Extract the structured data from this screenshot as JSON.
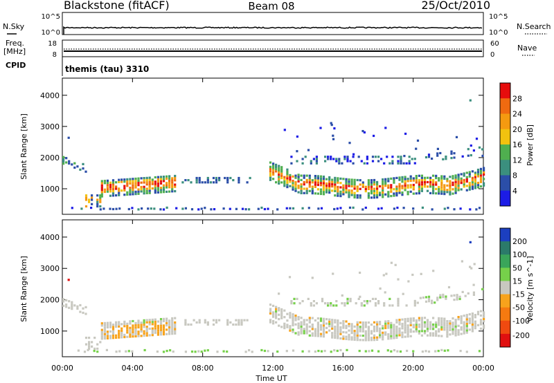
{
  "header": {
    "station": "Blackstone (fitACF)",
    "beam": "Beam 08",
    "date": "25/Oct/2010"
  },
  "strips": {
    "nsky_label": "N.Sky",
    "nsky_top": "10^5",
    "nsky_bottom": "10^0",
    "nsearch_label": "N.Search",
    "nsearch_top": "10^5",
    "nsearch_bottom": "10^0",
    "freq_label": "Freq.",
    "freq_unit": "[MHz]",
    "freq_top": "18",
    "freq_bottom": "8",
    "nave_label": "Nave",
    "nave_top": "60",
    "nave_bottom": "0",
    "cpid_label": "CPID",
    "cpid_value": "themis (tau) 3310"
  },
  "chart_data": [
    {
      "type": "heatmap",
      "name": "power",
      "ylabel": "Slant Range [km]",
      "colorbar_label": "Power [dB]",
      "y_ticks": [
        1000,
        2000,
        3000,
        4000
      ],
      "ylim": [
        180,
        4550
      ],
      "colorbar_ticks": [
        "4",
        "8",
        "12",
        "16",
        "20",
        "24",
        "28"
      ],
      "colors": [
        "#1c1ce6",
        "#2b4ea8",
        "#3b8f7e",
        "#4faf4f",
        "#f2c20f",
        "#f59a10",
        "#f06a10",
        "#e60d0d"
      ]
    },
    {
      "type": "heatmap",
      "name": "velocity",
      "ylabel": "Slant Range [km]",
      "colorbar_label": "Velocity [m s^-1]",
      "y_ticks": [
        1000,
        2000,
        3000,
        4000
      ],
      "ylim": [
        180,
        4550
      ],
      "colorbar_ticks": [
        "200",
        "100",
        "50",
        "15",
        "-15",
        "-50",
        "-100",
        "-200"
      ],
      "colors": [
        "#1c3fc0",
        "#2b7a6a",
        "#3aa55a",
        "#76d04a",
        "#c8c8c0",
        "#f7a31c",
        "#f57a10",
        "#f04a10",
        "#e01010"
      ]
    }
  ],
  "time_axis": {
    "xlabel": "Time UT",
    "ticks": [
      "00:00",
      "04:00",
      "08:00",
      "12:00",
      "16:00",
      "20:00",
      "00:00"
    ],
    "x": [
      0,
      4,
      8,
      12,
      16,
      20,
      24
    ]
  }
}
